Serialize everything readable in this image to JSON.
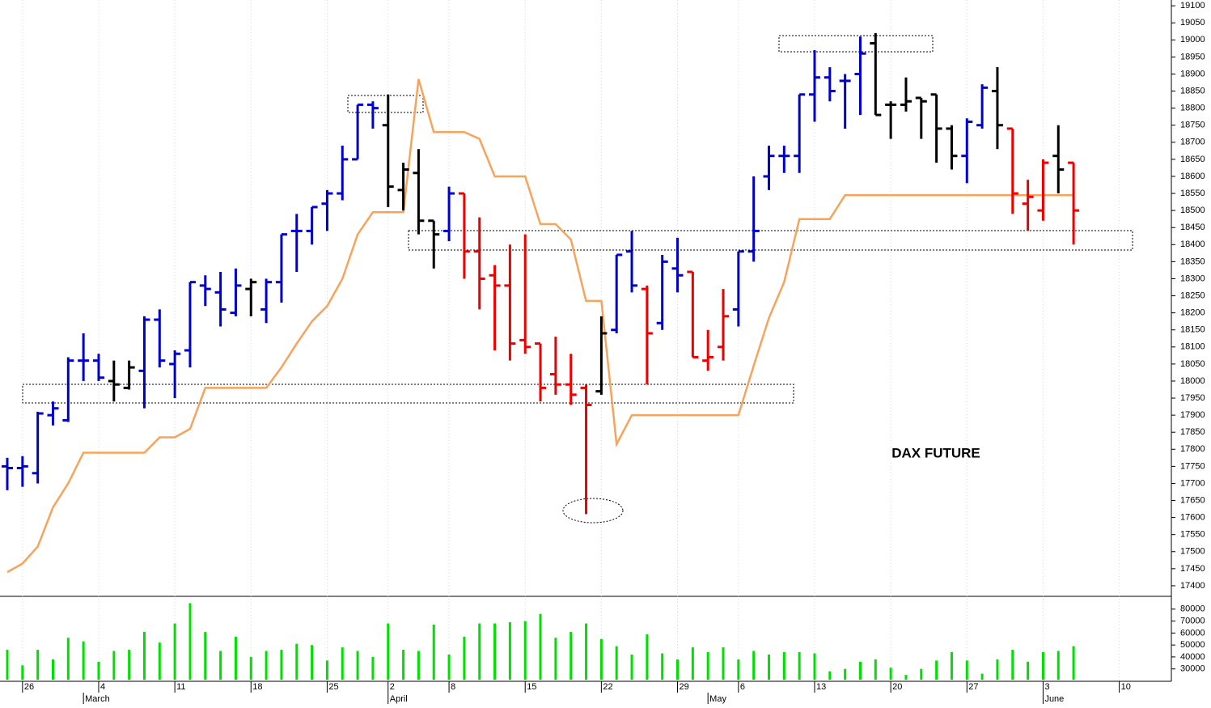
{
  "chart_data": {
    "type": "ohlc",
    "annotations": [
      "DAX FUTURE"
    ],
    "grid": true,
    "categories": [
      null,
      "26",
      null,
      null,
      null,
      null,
      "4",
      null,
      null,
      null,
      null,
      "11",
      null,
      null,
      null,
      null,
      "18",
      null,
      null,
      null,
      null,
      "25",
      null,
      null,
      null,
      "2",
      null,
      null,
      null,
      "8",
      null,
      null,
      null,
      null,
      "15",
      null,
      null,
      null,
      null,
      "22",
      null,
      null,
      null,
      null,
      "29",
      null,
      null,
      null,
      "6",
      null,
      null,
      null,
      null,
      "13",
      null,
      null,
      null,
      null,
      "20",
      null,
      null,
      null,
      null,
      "27",
      null,
      null,
      null,
      null,
      "3",
      null,
      null,
      null,
      null,
      "10",
      null
    ],
    "months": [
      {
        "label": "March",
        "index": 5
      },
      {
        "label": "April",
        "index": 25
      },
      {
        "label": "May",
        "index": 46
      },
      {
        "label": "June",
        "index": 68
      }
    ],
    "ylim": [
      17369,
      19117
    ],
    "yticks": [
      17400,
      17450,
      17500,
      17550,
      17600,
      17650,
      17700,
      17750,
      17800,
      17850,
      17900,
      17950,
      18000,
      18050,
      18100,
      18150,
      18200,
      18250,
      18300,
      18350,
      18400,
      18450,
      18500,
      18550,
      18600,
      18650,
      18700,
      18750,
      18800,
      18850,
      18900,
      18950,
      19000,
      19050,
      19100
    ],
    "series": [
      {
        "type": "ohlc",
        "open": [
          17750,
          17745,
          17730,
          17900,
          17885,
          18060,
          18060,
          18000,
          17980,
          18030,
          18180,
          18050,
          18090,
          18280,
          18260,
          18200,
          18270,
          18210,
          18290,
          18440,
          18440,
          18520,
          18550,
          18650,
          18810,
          18750,
          18560,
          18610,
          18470,
          18440,
          18550,
          18380,
          18310,
          18280,
          18120,
          18110,
          18020,
          17990,
          17980,
          17970,
          18150,
          18380,
          18270,
          18170,
          18330,
          18320,
          18060,
          18100,
          18210,
          18380,
          18600,
          18660,
          18660,
          18840,
          18890,
          18880,
          18900,
          18990,
          18810,
          18810,
          18830,
          18840,
          18740,
          18660,
          18750,
          18850,
          18740,
          18520,
          18500,
          18660,
          18640,
          null,
          null,
          null,
          null
        ],
        "high": [
          17775,
          17780,
          17910,
          17940,
          18070,
          18140,
          18080,
          18060,
          18060,
          18190,
          18210,
          18090,
          18290,
          18310,
          18320,
          18330,
          18300,
          18300,
          18430,
          18490,
          18510,
          18560,
          18690,
          18810,
          18820,
          18840,
          18640,
          18680,
          18470,
          18570,
          18550,
          18480,
          18340,
          18400,
          18430,
          18110,
          18130,
          18080,
          17990,
          18190,
          18370,
          18440,
          18280,
          18370,
          18420,
          18320,
          18150,
          18270,
          18380,
          18600,
          18690,
          18690,
          18840,
          18970,
          18920,
          18900,
          19010,
          19020,
          18820,
          18890,
          18830,
          18840,
          18750,
          18770,
          18870,
          18920,
          18740,
          18590,
          18650,
          18750,
          18640,
          null,
          null,
          null,
          null
        ],
        "low": [
          17680,
          17690,
          17700,
          17870,
          17880,
          18000,
          18000,
          17940,
          17975,
          17920,
          18040,
          17950,
          18040,
          18220,
          18160,
          18190,
          18190,
          18170,
          18230,
          18320,
          18400,
          18440,
          18530,
          18650,
          18740,
          18510,
          18500,
          18430,
          18330,
          18410,
          18300,
          18210,
          18090,
          18060,
          18080,
          17940,
          17960,
          17930,
          17610,
          17960,
          18140,
          18260,
          17990,
          18150,
          18260,
          18070,
          18030,
          18060,
          18160,
          18350,
          18560,
          18610,
          18610,
          18760,
          18820,
          18740,
          18780,
          18780,
          18710,
          18790,
          18710,
          18640,
          18620,
          18580,
          18740,
          18680,
          18490,
          18440,
          18470,
          18550,
          18400,
          null,
          null,
          null,
          null
        ],
        "close": [
          17745,
          17750,
          17905,
          17920,
          18060,
          18060,
          18010,
          17990,
          18040,
          18180,
          18060,
          18080,
          18290,
          18270,
          18210,
          18280,
          18290,
          18290,
          18430,
          18440,
          18510,
          18550,
          18650,
          18810,
          18800,
          18570,
          18620,
          18470,
          18430,
          18550,
          18380,
          18300,
          18280,
          18110,
          18100,
          17980,
          17990,
          17960,
          17930,
          18140,
          18370,
          18280,
          18140,
          18350,
          18310,
          18070,
          18070,
          18190,
          18380,
          18440,
          18660,
          18660,
          18840,
          18890,
          18850,
          18880,
          18960,
          18780,
          18810,
          18820,
          18820,
          18740,
          18660,
          18760,
          18860,
          18750,
          18550,
          18540,
          18640,
          18620,
          18500,
          null,
          null,
          null,
          null
        ],
        "colors": [
          "#0000cc",
          "#0000cc",
          "#0000cc",
          "#0000cc",
          "#0000cc",
          "#0000cc",
          "#0000cc",
          "#000000",
          "#000000",
          "#0000cc",
          "#0000cc",
          "#0000cc",
          "#0000cc",
          "#0000cc",
          "#0000cc",
          "#0000cc",
          "#000000",
          "#0000cc",
          "#0000cc",
          "#0000cc",
          "#0000cc",
          "#0000cc",
          "#0000cc",
          "#0000cc",
          "#0000cc",
          "#000000",
          "#000000",
          "#000000",
          "#000000",
          "#0000cc",
          "#ee0000",
          "#ee0000",
          "#ee0000",
          "#ee0000",
          "#ee0000",
          "#ee0000",
          "#ee0000",
          "#ee0000",
          "#ee0000",
          "#000000",
          "#0000cc",
          "#0000cc",
          "#ee0000",
          "#0000cc",
          "#0000cc",
          "#ee0000",
          "#ee0000",
          "#ee0000",
          "#0000cc",
          "#0000cc",
          "#0000cc",
          "#0000cc",
          "#0000cc",
          "#0000cc",
          "#0000cc",
          "#0000cc",
          "#0000cc",
          "#000000",
          "#000000",
          "#000000",
          "#000000",
          "#000000",
          "#000000",
          "#0000cc",
          "#0000cc",
          "#000000",
          "#ee0000",
          "#ee0000",
          "#ee0000",
          "#000000",
          "#ee0000",
          null,
          null,
          null,
          null
        ]
      },
      {
        "type": "line",
        "color": "#f7a35c",
        "values": [
          17440,
          17465,
          17515,
          17630,
          17700,
          17790,
          17790,
          17790,
          17790,
          17790,
          17835,
          17835,
          17860,
          17980,
          17980,
          17980,
          17980,
          17980,
          18040,
          18110,
          18175,
          18220,
          18300,
          18430,
          18495,
          18495,
          18495,
          18885,
          18730,
          18730,
          18730,
          18710,
          18600,
          18600,
          18600,
          18460,
          18460,
          18415,
          18235,
          18235,
          17815,
          17900,
          17900,
          17900,
          17900,
          17900,
          17900,
          17900,
          17900,
          18045,
          18185,
          18290,
          18475,
          18475,
          18475,
          18545,
          18545,
          18545,
          18545,
          18545,
          18545,
          18545,
          18545,
          18545,
          18545,
          18545,
          18545,
          18545,
          18545,
          18545,
          18545,
          null,
          null,
          null,
          null
        ]
      }
    ],
    "volume": {
      "type": "bar",
      "color": "#00e000",
      "ylim": [
        21000,
        90000
      ],
      "yticks": [
        30000,
        40000,
        50000,
        60000,
        70000,
        80000
      ],
      "values": [
        46000,
        33000,
        46000,
        38000,
        56000,
        53000,
        36000,
        45000,
        46000,
        61000,
        52000,
        68000,
        85000,
        61000,
        45000,
        57000,
        40000,
        45000,
        46000,
        51000,
        50000,
        37000,
        48000,
        45000,
        40000,
        68000,
        46000,
        45000,
        67000,
        42000,
        57000,
        68000,
        68000,
        69000,
        70000,
        76000,
        56000,
        61000,
        68000,
        55000,
        49000,
        42000,
        59000,
        43000,
        38000,
        48000,
        44000,
        48000,
        38000,
        45000,
        42000,
        44000,
        44000,
        43000,
        28000,
        30000,
        36000,
        38000,
        31000,
        25000,
        30000,
        37000,
        44000,
        37000,
        26000,
        38000,
        46000,
        36000,
        44000,
        45000,
        49000,
        null,
        null,
        null,
        null
      ]
    }
  }
}
